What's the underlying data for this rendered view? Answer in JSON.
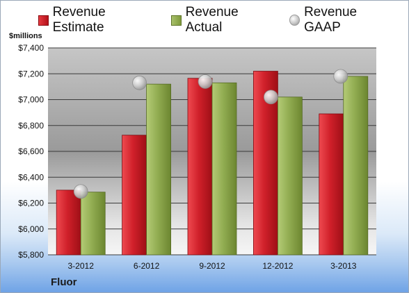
{
  "chart_data": {
    "type": "bar",
    "ylabel": "$millions",
    "company": "Fluor",
    "categories": [
      "3-2012",
      "6-2012",
      "9-2012",
      "12-2012",
      "3-2013"
    ],
    "ylim": [
      5800,
      7400
    ],
    "yticks": [
      5800,
      6000,
      6200,
      6400,
      6600,
      6800,
      7000,
      7200,
      7400
    ],
    "ytick_labels": [
      "$5,800",
      "$6,000",
      "$6,200",
      "$6,400",
      "$6,600",
      "$6,800",
      "$7,000",
      "$7,200",
      "$7,400"
    ],
    "grid": true,
    "legend": "top",
    "series": [
      {
        "name": "Revenue Estimate",
        "kind": "bar",
        "color": "#c8171f",
        "values": [
          6300,
          6725,
          7165,
          7220,
          6890
        ]
      },
      {
        "name": "Revenue Actual",
        "kind": "bar",
        "color": "#8aa64a",
        "values": [
          6285,
          7120,
          7130,
          7020,
          7180
        ]
      },
      {
        "name": "Revenue GAAP",
        "kind": "marker",
        "color": "#c0c0c0",
        "values": [
          6290,
          7130,
          7140,
          7020,
          7180
        ]
      }
    ]
  }
}
